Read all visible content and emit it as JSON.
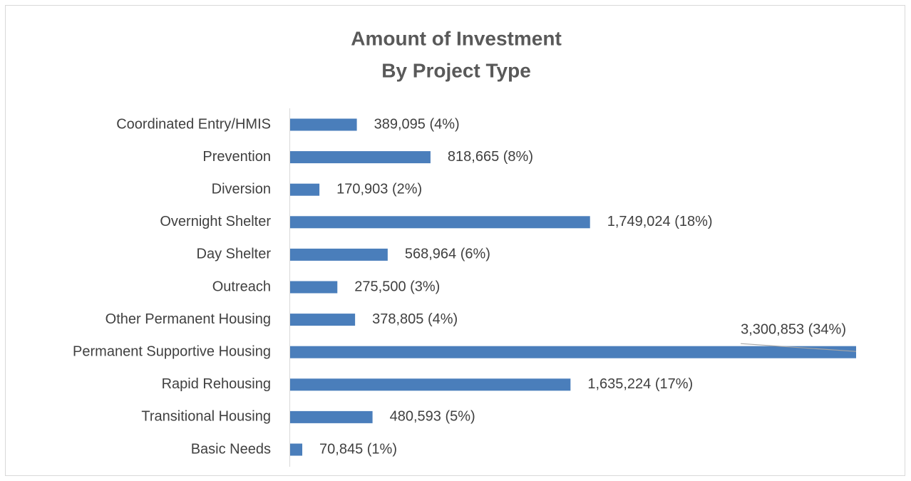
{
  "chart_data": {
    "type": "bar",
    "orientation": "horizontal",
    "title": [
      "Amount of Investment",
      "By Project Type"
    ],
    "categories": [
      "Coordinated Entry/HMIS",
      "Prevention",
      "Diversion",
      "Overnight Shelter",
      "Day Shelter",
      "Outreach",
      "Other Permanent Housing",
      "Permanent Supportive Housing",
      "Rapid Rehousing",
      "Transitional Housing",
      "Basic Needs"
    ],
    "values": [
      389095,
      818665,
      170903,
      1749024,
      568964,
      275500,
      378805,
      3300853,
      1635224,
      480593,
      70845
    ],
    "value_labels": [
      "389,095 (4%)",
      "818,665 (8%)",
      "170,903  (2%)",
      "1,749,024  (18%)",
      "568,964  (6%)",
      "275,500  (3%)",
      "378,805 (4%)",
      "3,300,853  (34%)",
      "1,635,224  (17%)",
      "480,593  (5%)",
      "70,845  (1%)"
    ],
    "color": "#4a7ebb"
  }
}
